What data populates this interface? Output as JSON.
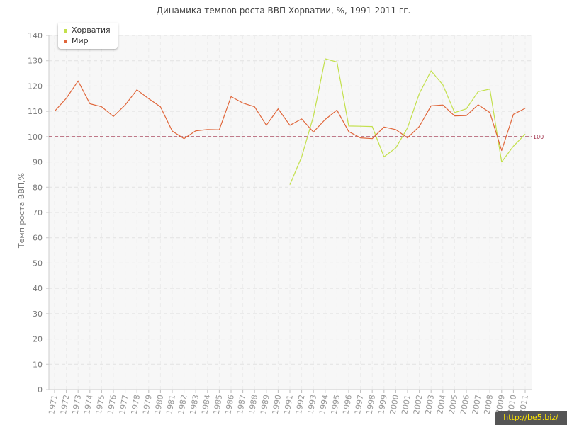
{
  "chart_data": {
    "type": "line",
    "title": "Динамика темпов роста ВВП Хорватии, %, 1991-2011 гг.",
    "xlabel": "",
    "ylabel": "Темп роста ВВП,%",
    "ylim": [
      0,
      140
    ],
    "yticks": [
      0,
      10,
      20,
      30,
      40,
      50,
      60,
      70,
      80,
      90,
      100,
      110,
      120,
      130,
      140
    ],
    "categories": [
      "1971",
      "1972",
      "1973",
      "1974",
      "1975",
      "1976",
      "1977",
      "1978",
      "1979",
      "1980",
      "1981",
      "1982",
      "1983",
      "1984",
      "1985",
      "1986",
      "1987",
      "1988",
      "1989",
      "1990",
      "1991",
      "1992",
      "1993",
      "1994",
      "1995",
      "1996",
      "1997",
      "1998",
      "1999",
      "2000",
      "2001",
      "2002",
      "2003",
      "2004",
      "2005",
      "2006",
      "2007",
      "2008",
      "2009",
      "2010",
      "2011"
    ],
    "reference_line": {
      "value": 100,
      "label": "100",
      "color": "#a0304a"
    },
    "grid": true,
    "legend": "top-left",
    "series": [
      {
        "name": "Хорватия",
        "color": "#c3e04c",
        "values": [
          null,
          null,
          null,
          null,
          null,
          null,
          null,
          null,
          null,
          null,
          null,
          null,
          null,
          null,
          null,
          null,
          null,
          null,
          null,
          null,
          81,
          92,
          108,
          130.8,
          129.5,
          104.2,
          104.1,
          104,
          92,
          95.5,
          103.5,
          117,
          126,
          120.5,
          109.5,
          111,
          117.8,
          118.8,
          90,
          96.2,
          101
        ]
      },
      {
        "name": "Мир",
        "color": "#e0663a",
        "values": [
          110,
          115.2,
          122,
          113,
          111.8,
          108,
          112.5,
          118.5,
          115,
          111.8,
          102.2,
          99.2,
          102.3,
          102.8,
          102.7,
          115.8,
          113.3,
          111.8,
          104.5,
          111,
          104.5,
          107,
          101.8,
          106.8,
          110.5,
          102,
          99.5,
          99.2,
          103.8,
          102.8,
          99.5,
          104,
          112.2,
          112.5,
          108.2,
          108.3,
          112.6,
          109.5,
          94.5,
          108.8,
          111.2
        ]
      }
    ]
  },
  "watermark": "http://be5.biz/"
}
